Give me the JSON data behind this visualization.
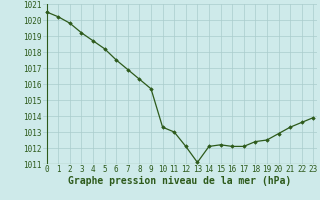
{
  "x": [
    0,
    1,
    2,
    3,
    4,
    5,
    6,
    7,
    8,
    9,
    10,
    11,
    12,
    13,
    14,
    15,
    16,
    17,
    18,
    19,
    20,
    21,
    22,
    23
  ],
  "y": [
    1020.5,
    1020.2,
    1019.8,
    1019.2,
    1018.7,
    1018.2,
    1017.5,
    1016.9,
    1016.3,
    1015.7,
    1013.3,
    1013.0,
    1012.1,
    1011.1,
    1012.1,
    1012.2,
    1012.1,
    1012.1,
    1012.4,
    1012.5,
    1012.9,
    1013.3,
    1013.6,
    1013.9
  ],
  "ylim": [
    1011,
    1021
  ],
  "xlim": [
    -0.3,
    23.3
  ],
  "yticks": [
    1011,
    1012,
    1013,
    1014,
    1015,
    1016,
    1017,
    1018,
    1019,
    1020,
    1021
  ],
  "xticks": [
    0,
    1,
    2,
    3,
    4,
    5,
    6,
    7,
    8,
    9,
    10,
    11,
    12,
    13,
    14,
    15,
    16,
    17,
    18,
    19,
    20,
    21,
    22,
    23
  ],
  "xlabel": "Graphe pression niveau de la mer (hPa)",
  "line_color": "#2d5a1b",
  "marker": "D",
  "marker_size": 1.8,
  "background_color": "#ceeaea",
  "grid_color": "#aacccc",
  "tick_color": "#2d5a1b",
  "label_color": "#2d5a1b",
  "tick_fontsize": 5.5,
  "xlabel_fontsize": 7.0,
  "linewidth": 0.9
}
